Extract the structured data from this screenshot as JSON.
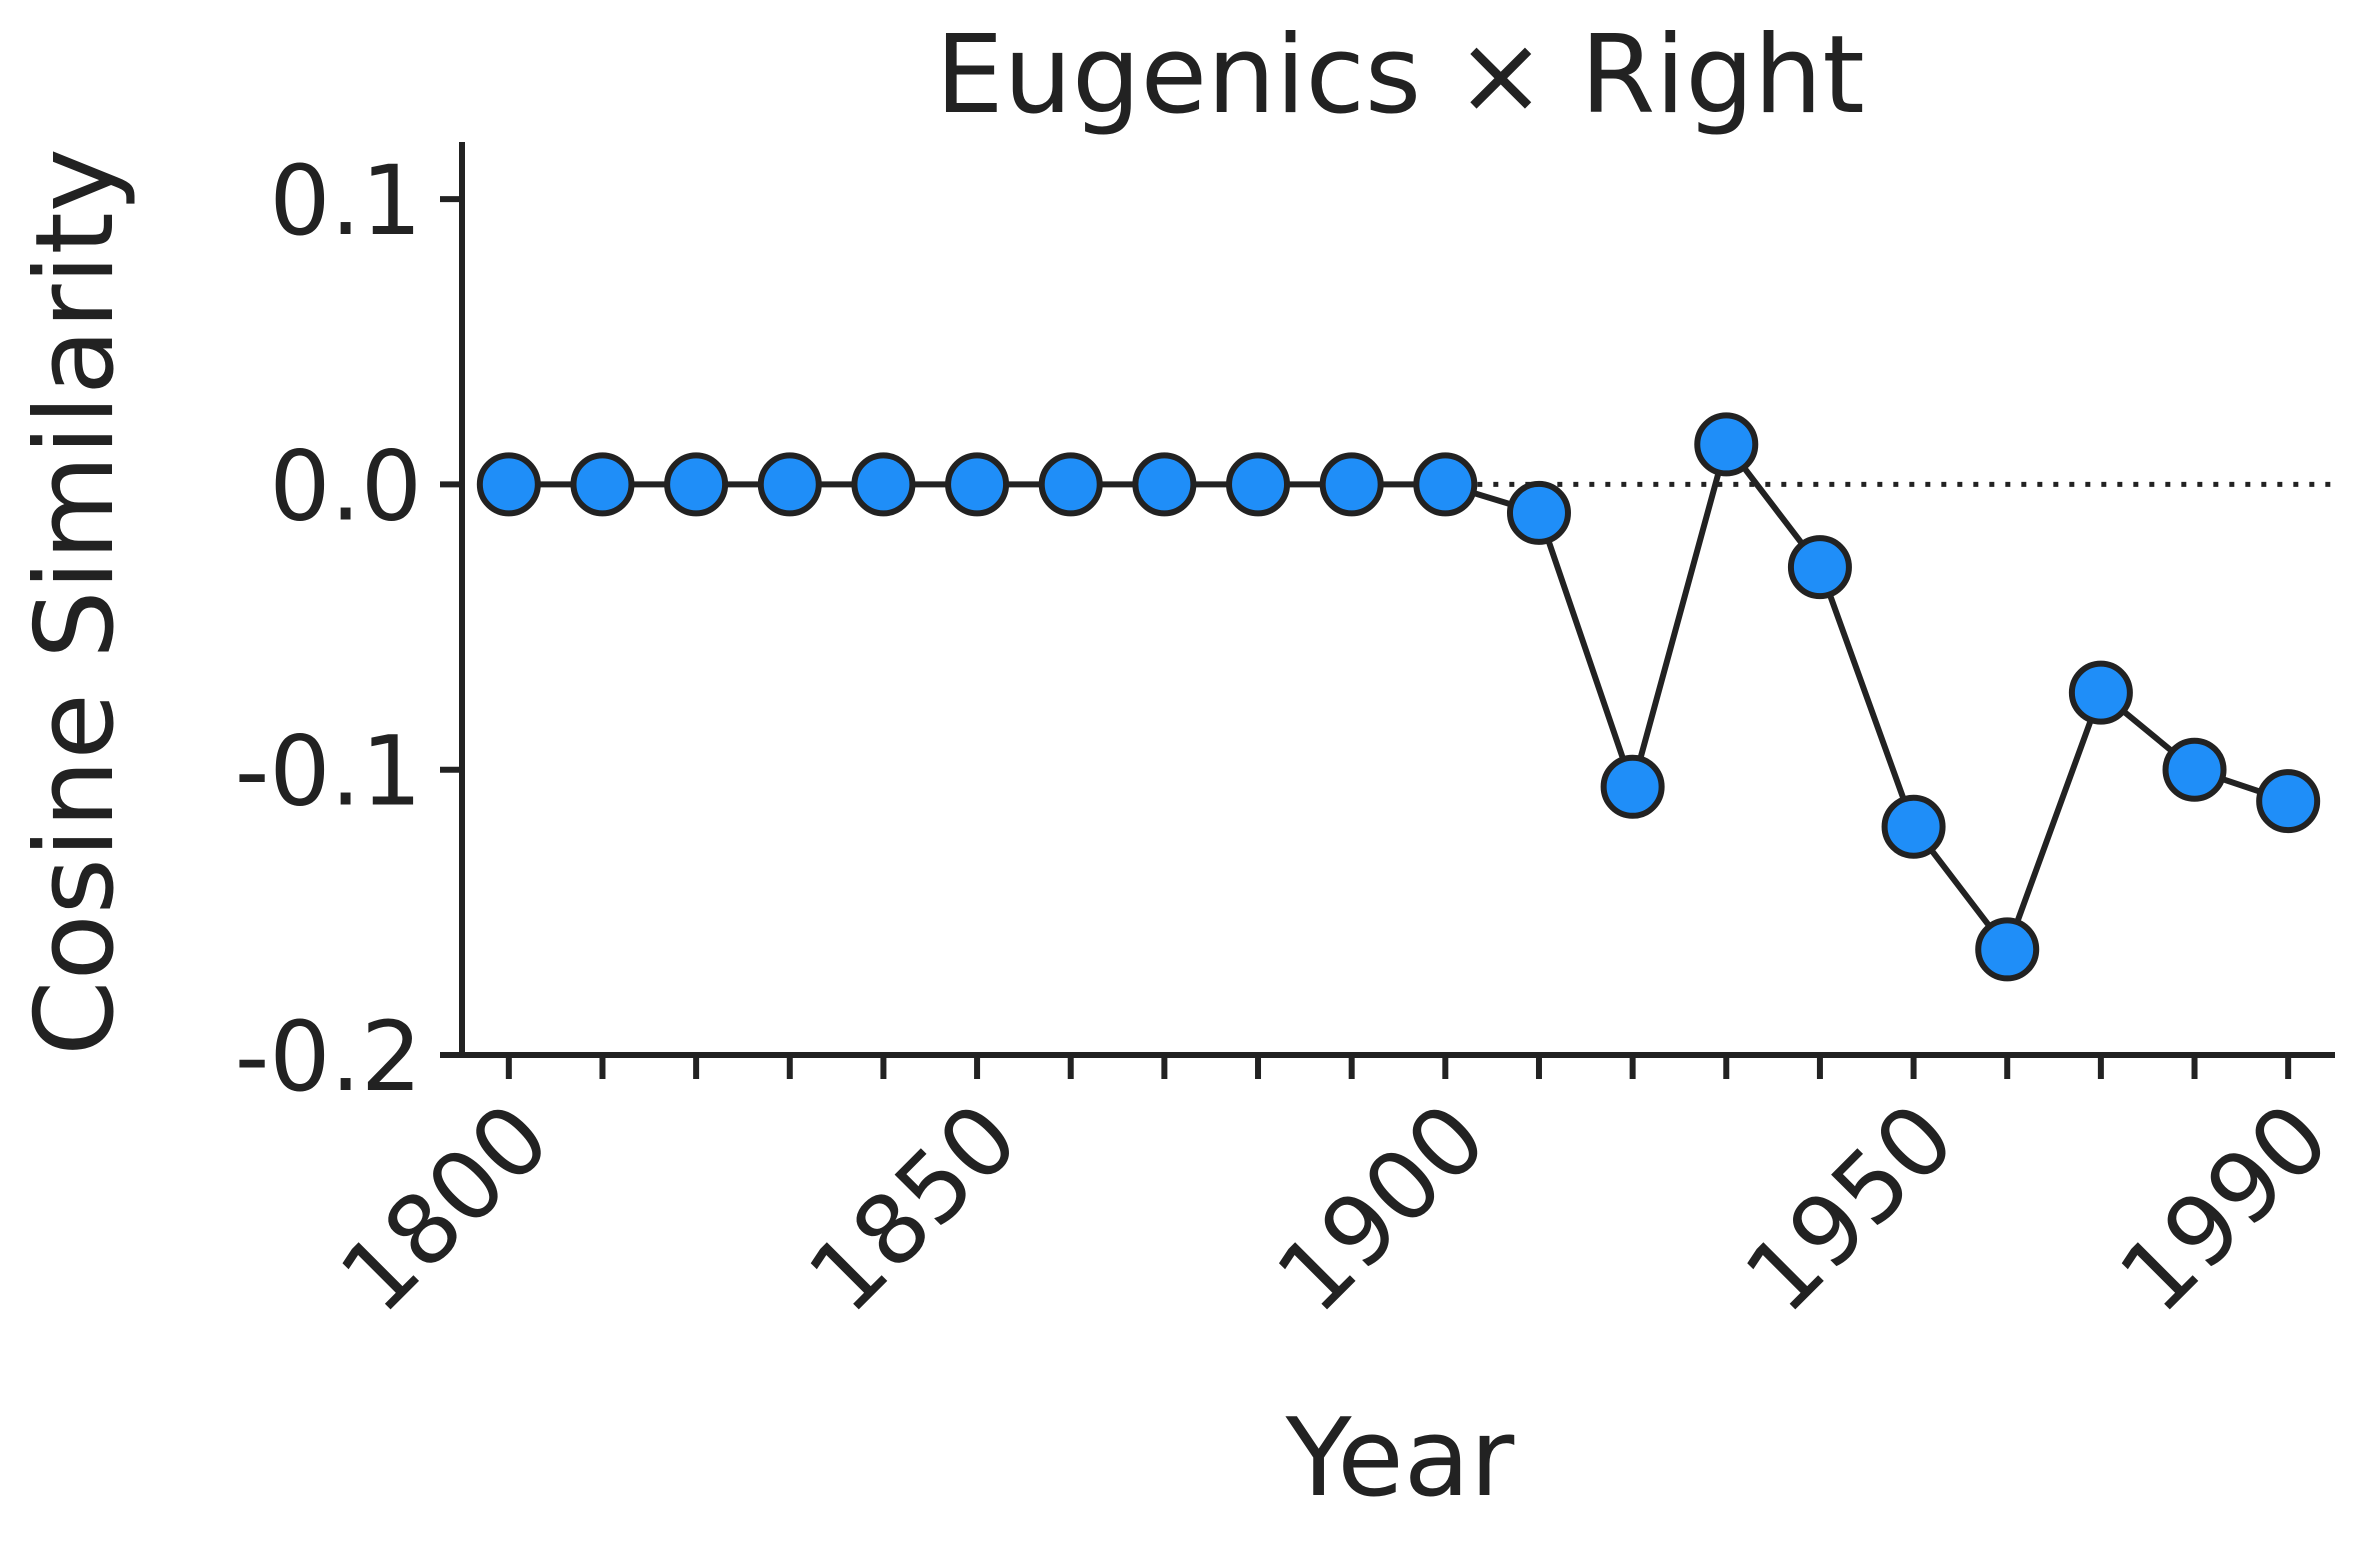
{
  "chart_data": {
    "type": "line",
    "title": "Eugenics × Right",
    "xlabel": "Year",
    "ylabel": "Cosine Similarity",
    "x": [
      1800,
      1810,
      1820,
      1830,
      1840,
      1850,
      1860,
      1870,
      1880,
      1890,
      1900,
      1910,
      1920,
      1930,
      1940,
      1950,
      1960,
      1970,
      1980,
      1990
    ],
    "series": [
      {
        "name": "",
        "values": [
          0.0,
          0.0,
          0.0,
          0.0,
          0.0,
          0.0,
          0.0,
          0.0,
          0.0,
          0.0,
          0.0,
          -0.01,
          -0.106,
          0.014,
          -0.029,
          -0.12,
          -0.163,
          -0.073,
          -0.1,
          -0.111
        ]
      }
    ],
    "xticks": [
      1800,
      1850,
      1900,
      1950,
      1990
    ],
    "xtick_labels": [
      "1800",
      "1850",
      "1900",
      "1950",
      "1990"
    ],
    "yticks": [
      0.1,
      0.0,
      -0.1,
      -0.2
    ],
    "ytick_labels": [
      "0.1",
      "0.0",
      "-0.1",
      "-0.2"
    ],
    "xlim": [
      1795,
      1995
    ],
    "ylim": [
      -0.2,
      0.12
    ],
    "reference_line": {
      "y": 0.0,
      "style": "dotted",
      "start_x": 1900
    },
    "grid": false,
    "legend": "none",
    "colors": {
      "marker_fill": "#1f8ef8",
      "line": "#222222",
      "axis": "#222222"
    }
  }
}
